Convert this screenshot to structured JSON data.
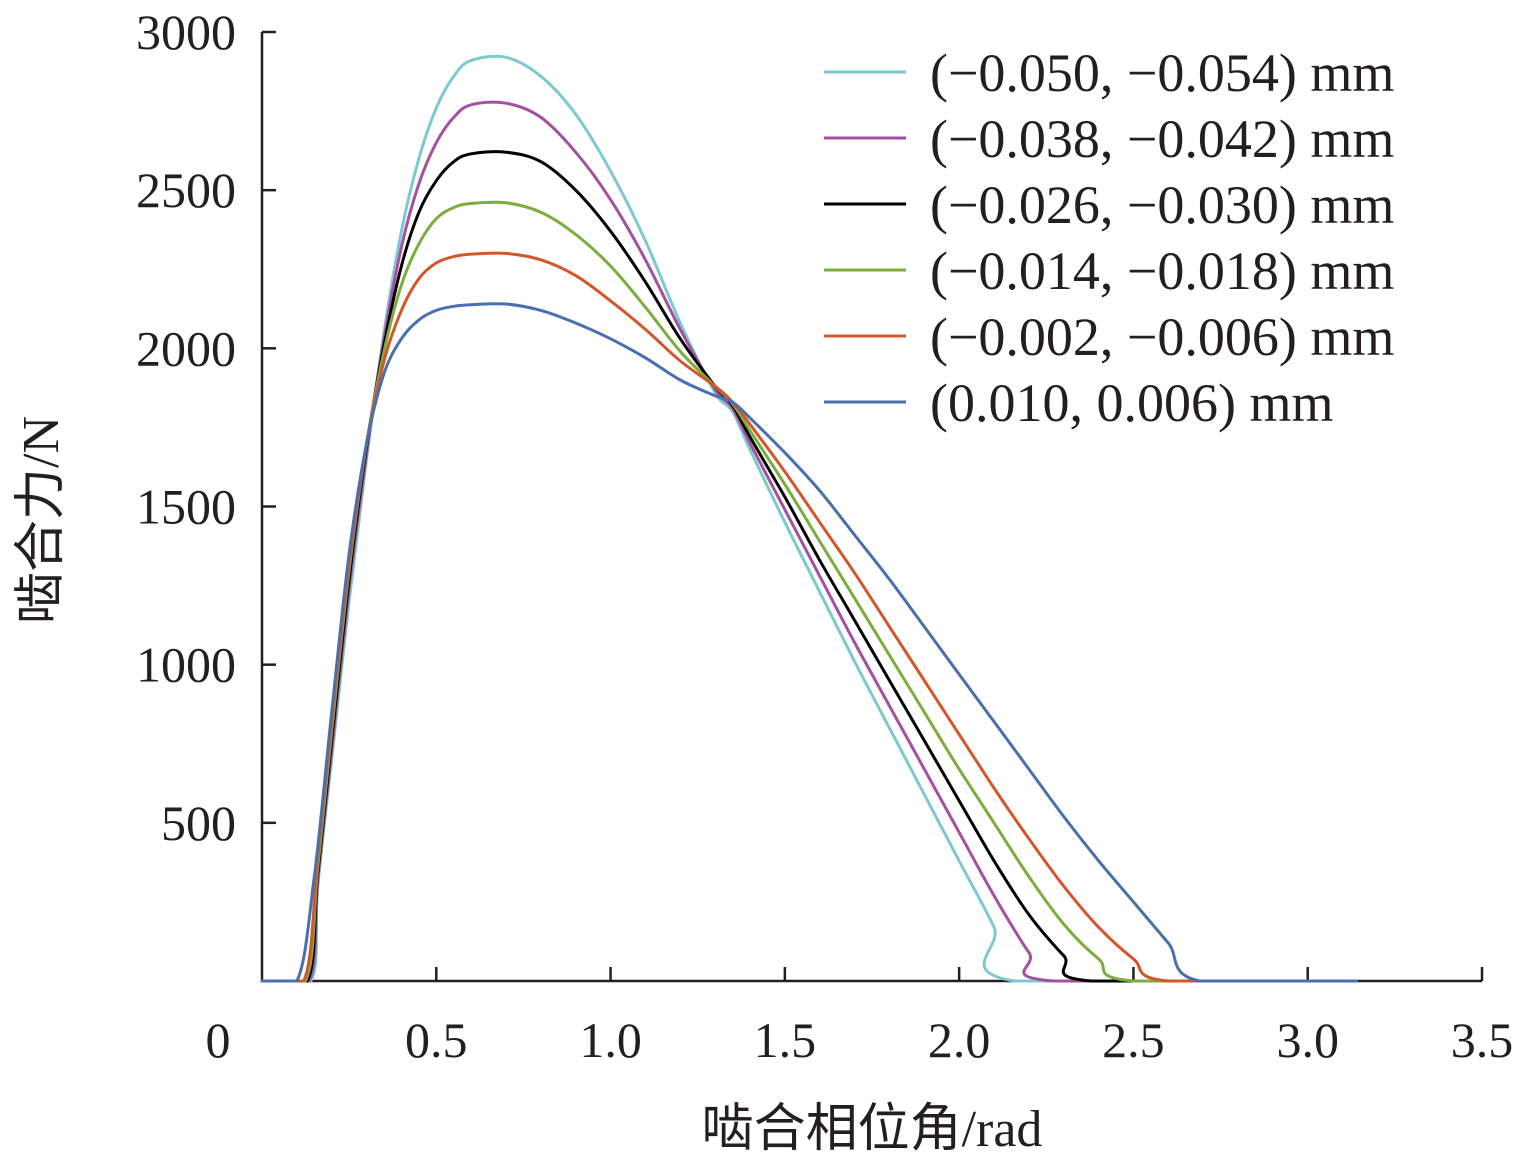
{
  "chart_data": {
    "type": "line",
    "title": "",
    "xlabel": "啮合相位角/rad",
    "ylabel": "啮合力/N",
    "xlim": [
      0,
      3.5
    ],
    "ylim": [
      0,
      3000
    ],
    "x_ticks": [
      0,
      0.5,
      1.0,
      1.5,
      2.0,
      2.5,
      3.0,
      3.5
    ],
    "x_tick_labels": [
      "0",
      "0.5",
      "1.0",
      "1.5",
      "2.0",
      "2.5",
      "3.0",
      "3.5"
    ],
    "y_ticks": [
      500,
      1000,
      1500,
      2000,
      2500,
      3000
    ],
    "y_tick_labels": [
      "500",
      "1000",
      "1500",
      "2000",
      "2500",
      "3000"
    ],
    "grid": false,
    "legend_position": "top-right",
    "x_range": [
      0.0,
      3.14
    ],
    "series": [
      {
        "name": "(−0.050, −0.054) mm",
        "color": "#7cc9cf",
        "peak": [
          0.7,
          2920
        ],
        "points": [
          [
            0.0,
            0
          ],
          [
            0.14,
            0
          ],
          [
            0.16,
            300
          ],
          [
            0.2,
            700
          ],
          [
            0.25,
            1200
          ],
          [
            0.3,
            1650
          ],
          [
            0.35,
            2050
          ],
          [
            0.4,
            2370
          ],
          [
            0.45,
            2600
          ],
          [
            0.5,
            2760
          ],
          [
            0.55,
            2860
          ],
          [
            0.6,
            2910
          ],
          [
            0.7,
            2920
          ],
          [
            0.8,
            2860
          ],
          [
            0.9,
            2740
          ],
          [
            1.0,
            2560
          ],
          [
            1.1,
            2340
          ],
          [
            1.2,
            2080
          ],
          [
            1.3,
            1860
          ],
          [
            1.35,
            1800
          ],
          [
            1.4,
            1680
          ],
          [
            1.5,
            1450
          ],
          [
            1.6,
            1230
          ],
          [
            1.7,
            1010
          ],
          [
            1.8,
            800
          ],
          [
            1.9,
            590
          ],
          [
            2.0,
            380
          ],
          [
            2.1,
            170
          ],
          [
            2.16,
            0
          ],
          [
            3.14,
            0
          ]
        ]
      },
      {
        "name": "(−0.038, −0.042) mm",
        "color": "#a54fa0",
        "peak": [
          0.7,
          2775
        ],
        "points": [
          [
            0.0,
            0
          ],
          [
            0.135,
            0
          ],
          [
            0.16,
            320
          ],
          [
            0.2,
            730
          ],
          [
            0.25,
            1240
          ],
          [
            0.3,
            1670
          ],
          [
            0.35,
            2030
          ],
          [
            0.4,
            2320
          ],
          [
            0.45,
            2520
          ],
          [
            0.5,
            2650
          ],
          [
            0.55,
            2730
          ],
          [
            0.6,
            2770
          ],
          [
            0.7,
            2775
          ],
          [
            0.8,
            2730
          ],
          [
            0.9,
            2620
          ],
          [
            1.0,
            2470
          ],
          [
            1.1,
            2280
          ],
          [
            1.2,
            2060
          ],
          [
            1.3,
            1870
          ],
          [
            1.35,
            1810
          ],
          [
            1.4,
            1700
          ],
          [
            1.5,
            1490
          ],
          [
            1.6,
            1280
          ],
          [
            1.7,
            1070
          ],
          [
            1.8,
            870
          ],
          [
            1.9,
            670
          ],
          [
            2.0,
            470
          ],
          [
            2.1,
            270
          ],
          [
            2.2,
            90
          ],
          [
            2.27,
            0
          ],
          [
            3.14,
            0
          ]
        ]
      },
      {
        "name": "(−0.026, −0.030) mm",
        "color": "#000000",
        "peak": [
          0.7,
          2620
        ],
        "points": [
          [
            0.0,
            0
          ],
          [
            0.13,
            0
          ],
          [
            0.16,
            340
          ],
          [
            0.2,
            760
          ],
          [
            0.25,
            1270
          ],
          [
            0.3,
            1690
          ],
          [
            0.35,
            2010
          ],
          [
            0.4,
            2260
          ],
          [
            0.45,
            2430
          ],
          [
            0.5,
            2530
          ],
          [
            0.55,
            2590
          ],
          [
            0.6,
            2615
          ],
          [
            0.7,
            2620
          ],
          [
            0.8,
            2590
          ],
          [
            0.9,
            2500
          ],
          [
            1.0,
            2370
          ],
          [
            1.1,
            2210
          ],
          [
            1.2,
            2030
          ],
          [
            1.3,
            1880
          ],
          [
            1.35,
            1820
          ],
          [
            1.4,
            1720
          ],
          [
            1.5,
            1530
          ],
          [
            1.6,
            1330
          ],
          [
            1.7,
            1140
          ],
          [
            1.8,
            950
          ],
          [
            1.9,
            760
          ],
          [
            2.0,
            570
          ],
          [
            2.1,
            380
          ],
          [
            2.2,
            210
          ],
          [
            2.3,
            80
          ],
          [
            2.38,
            0
          ],
          [
            3.14,
            0
          ]
        ]
      },
      {
        "name": "(−0.014, −0.018) mm",
        "color": "#7cad3e",
        "peak": [
          0.7,
          2460
        ],
        "points": [
          [
            0.0,
            0
          ],
          [
            0.125,
            0
          ],
          [
            0.16,
            360
          ],
          [
            0.2,
            790
          ],
          [
            0.25,
            1300
          ],
          [
            0.3,
            1700
          ],
          [
            0.35,
            1990
          ],
          [
            0.4,
            2200
          ],
          [
            0.45,
            2330
          ],
          [
            0.5,
            2410
          ],
          [
            0.55,
            2445
          ],
          [
            0.6,
            2458
          ],
          [
            0.7,
            2460
          ],
          [
            0.8,
            2430
          ],
          [
            0.9,
            2360
          ],
          [
            1.0,
            2260
          ],
          [
            1.1,
            2130
          ],
          [
            1.2,
            1990
          ],
          [
            1.3,
            1880
          ],
          [
            1.35,
            1825
          ],
          [
            1.4,
            1740
          ],
          [
            1.5,
            1570
          ],
          [
            1.6,
            1390
          ],
          [
            1.7,
            1210
          ],
          [
            1.8,
            1030
          ],
          [
            1.9,
            850
          ],
          [
            2.0,
            670
          ],
          [
            2.1,
            500
          ],
          [
            2.2,
            330
          ],
          [
            2.3,
            180
          ],
          [
            2.4,
            70
          ],
          [
            2.5,
            0
          ],
          [
            3.14,
            0
          ]
        ]
      },
      {
        "name": "(−0.002, −0.006) mm",
        "color": "#d4572b",
        "peak": [
          0.7,
          2300
        ],
        "points": [
          [
            0.0,
            0
          ],
          [
            0.12,
            0
          ],
          [
            0.16,
            390
          ],
          [
            0.2,
            820
          ],
          [
            0.25,
            1320
          ],
          [
            0.3,
            1700
          ],
          [
            0.35,
            1960
          ],
          [
            0.4,
            2120
          ],
          [
            0.45,
            2220
          ],
          [
            0.5,
            2270
          ],
          [
            0.55,
            2290
          ],
          [
            0.6,
            2298
          ],
          [
            0.7,
            2300
          ],
          [
            0.8,
            2280
          ],
          [
            0.9,
            2230
          ],
          [
            1.0,
            2150
          ],
          [
            1.1,
            2060
          ],
          [
            1.2,
            1960
          ],
          [
            1.3,
            1880
          ],
          [
            1.35,
            1830
          ],
          [
            1.4,
            1760
          ],
          [
            1.5,
            1610
          ],
          [
            1.6,
            1450
          ],
          [
            1.7,
            1290
          ],
          [
            1.8,
            1120
          ],
          [
            1.9,
            950
          ],
          [
            2.0,
            780
          ],
          [
            2.1,
            610
          ],
          [
            2.2,
            450
          ],
          [
            2.3,
            300
          ],
          [
            2.4,
            170
          ],
          [
            2.5,
            70
          ],
          [
            2.6,
            0
          ],
          [
            3.14,
            0
          ]
        ]
      },
      {
        "name": "(0.010, 0.006) mm",
        "color": "#4a6fb0",
        "peak": [
          0.7,
          2140
        ],
        "points": [
          [
            0.0,
            0
          ],
          [
            0.1,
            0
          ],
          [
            0.15,
            330
          ],
          [
            0.2,
            850
          ],
          [
            0.25,
            1350
          ],
          [
            0.3,
            1700
          ],
          [
            0.35,
            1920
          ],
          [
            0.4,
            2030
          ],
          [
            0.45,
            2090
          ],
          [
            0.5,
            2120
          ],
          [
            0.55,
            2133
          ],
          [
            0.6,
            2138
          ],
          [
            0.7,
            2140
          ],
          [
            0.8,
            2120
          ],
          [
            0.9,
            2080
          ],
          [
            1.0,
            2030
          ],
          [
            1.1,
            1970
          ],
          [
            1.2,
            1900
          ],
          [
            1.3,
            1850
          ],
          [
            1.35,
            1830
          ],
          [
            1.4,
            1780
          ],
          [
            1.5,
            1670
          ],
          [
            1.6,
            1550
          ],
          [
            1.7,
            1410
          ],
          [
            1.8,
            1270
          ],
          [
            1.9,
            1120
          ],
          [
            2.0,
            970
          ],
          [
            2.1,
            820
          ],
          [
            2.2,
            670
          ],
          [
            2.3,
            520
          ],
          [
            2.4,
            380
          ],
          [
            2.5,
            250
          ],
          [
            2.6,
            120
          ],
          [
            2.69,
            0
          ],
          [
            3.14,
            0
          ]
        ]
      }
    ]
  }
}
